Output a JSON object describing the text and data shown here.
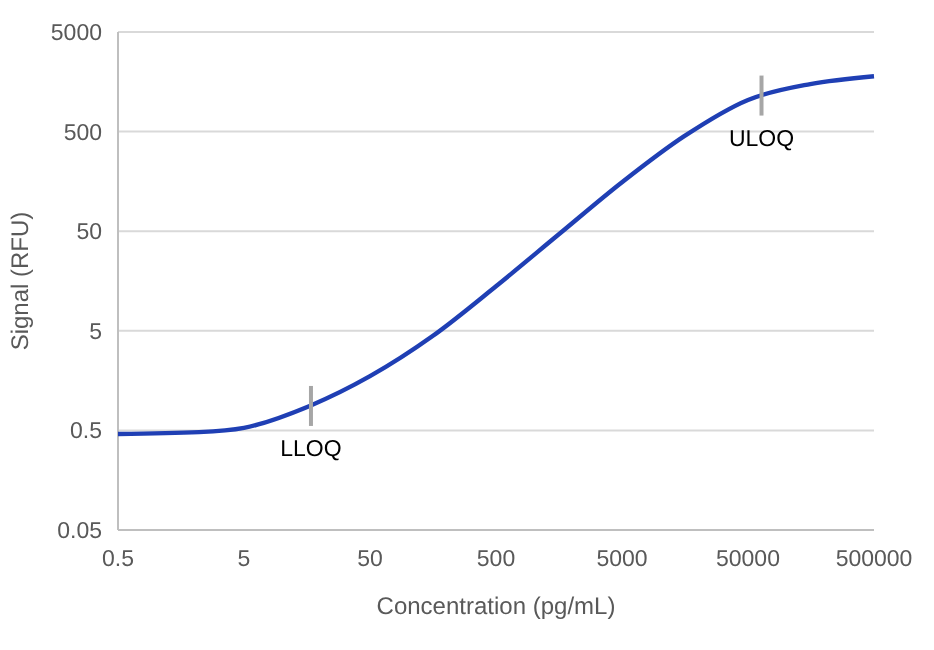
{
  "chart_data": {
    "type": "line",
    "xlabel": "Concentration (pg/mL)",
    "ylabel": "Signal (RFU)",
    "log": "xy",
    "x": [
      0.5,
      2.2,
      5,
      16.6,
      50,
      156,
      500,
      1560,
      5000,
      15600,
      50000,
      156000,
      500000
    ],
    "series": [
      {
        "color": "#1f3fb4",
        "values": [
          0.46,
          0.48,
          0.53,
          0.88,
          1.75,
          4.4,
          14,
          46,
          155,
          450,
          1040,
          1500,
          1800
        ]
      }
    ],
    "xlim": [
      0.5,
      500000
    ],
    "xticks": [
      0.5,
      5,
      50,
      500,
      5000,
      50000,
      500000
    ],
    "ylim": [
      0.05,
      5000
    ],
    "yticks": [
      0.05,
      0.5,
      5,
      50,
      500,
      5000
    ],
    "grid": "y",
    "marker": "none",
    "line_style": "solid",
    "annotations": [
      {
        "text": "LLOQ",
        "x": 17,
        "y": 0.88
      },
      {
        "text": "ULOQ",
        "x": 64000,
        "y": 1150
      }
    ]
  }
}
